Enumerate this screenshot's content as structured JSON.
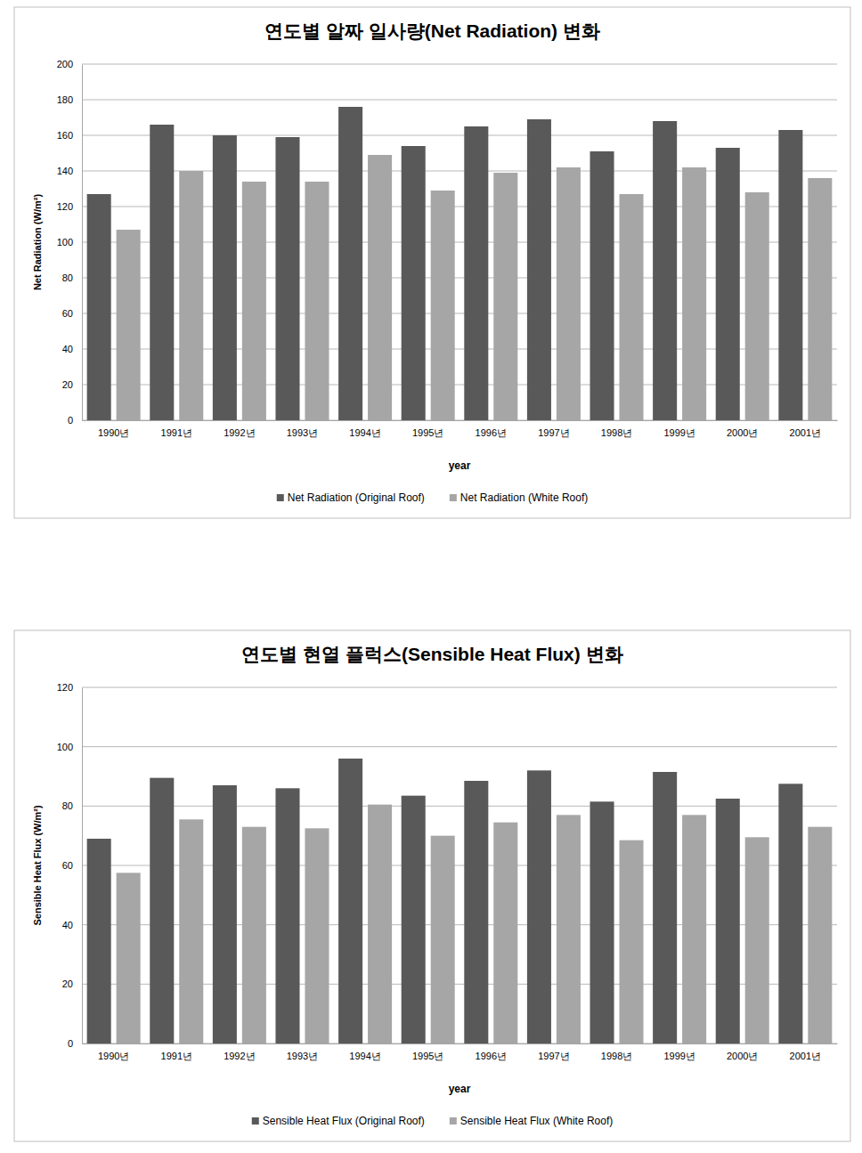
{
  "chart_data": [
    {
      "type": "bar",
      "title": "연도별 알짜 일사량(Net Radiation) 변화",
      "x_label": "year",
      "y_label": "Net Radiation (W/m²)",
      "categories": [
        "1990년",
        "1991년",
        "1992년",
        "1993년",
        "1994년",
        "1995년",
        "1996년",
        "1997년",
        "1998년",
        "1999년",
        "2000년",
        "2001년"
      ],
      "series": [
        {
          "name": "Net Radiation (Original Roof)",
          "color": "#595959",
          "values": [
            127,
            166,
            160,
            159,
            176,
            154,
            165,
            169,
            151,
            168,
            153,
            163
          ]
        },
        {
          "name": "Net Radiation (White Roof)",
          "color": "#a6a6a6",
          "values": [
            107,
            140,
            134,
            134,
            149,
            129,
            139,
            142,
            127,
            142,
            128,
            136
          ]
        }
      ],
      "ylim": [
        0,
        200
      ],
      "yticks": [
        0,
        20,
        40,
        60,
        80,
        100,
        120,
        140,
        160,
        180,
        200
      ],
      "grid": true,
      "legend": "bottom"
    },
    {
      "type": "bar",
      "title": "연도별 현열 플럭스(Sensible Heat Flux) 변화",
      "x_label": "year",
      "y_label": "Sensible Heat Flux (W/m²)",
      "categories": [
        "1990년",
        "1991년",
        "1992년",
        "1993년",
        "1994년",
        "1995년",
        "1996년",
        "1997년",
        "1998년",
        "1999년",
        "2000년",
        "2001년"
      ],
      "series": [
        {
          "name": "Sensible Heat Flux (Original Roof)",
          "color": "#595959",
          "values": [
            69,
            89.5,
            87,
            86,
            96,
            83.5,
            88.5,
            92,
            81.5,
            91.5,
            82.5,
            87.5
          ]
        },
        {
          "name": "Sensible Heat Flux (White Roof)",
          "color": "#a6a6a6",
          "values": [
            57.5,
            75.5,
            73,
            72.5,
            80.5,
            70,
            74.5,
            77,
            68.5,
            77,
            69.5,
            73
          ]
        }
      ],
      "ylim": [
        0,
        120
      ],
      "yticks": [
        0,
        20,
        40,
        60,
        80,
        100,
        120
      ],
      "grid": true,
      "legend": "bottom"
    }
  ]
}
